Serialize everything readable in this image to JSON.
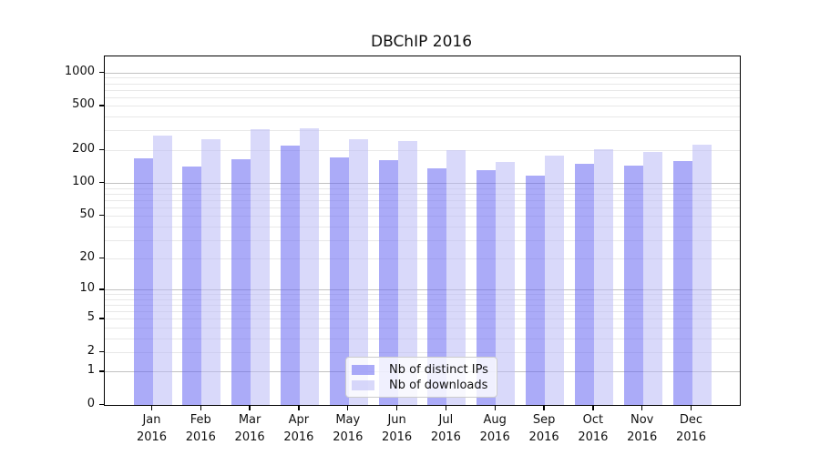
{
  "chart_data": {
    "type": "bar",
    "title": "DBChIP 2016",
    "categories": [
      "Jan",
      "Feb",
      "Mar",
      "Apr",
      "May",
      "Jun",
      "Jul",
      "Aug",
      "Sep",
      "Oct",
      "Nov",
      "Dec"
    ],
    "category_year_line": "2016",
    "series": [
      {
        "name": "Nb of distinct IPs",
        "color": "rgba(102,102,242,0.55)",
        "values": [
          168,
          140,
          165,
          218,
          171,
          161,
          135,
          131,
          117,
          149,
          144,
          157
        ]
      },
      {
        "name": "Nb of downloads",
        "color": "rgba(186,186,246,0.55)",
        "values": [
          267,
          252,
          307,
          312,
          249,
          240,
          199,
          154,
          177,
          201,
          190,
          224
        ]
      }
    ],
    "xlabel": "",
    "ylabel": "",
    "y_ticks": [
      0,
      1,
      2,
      5,
      10,
      20,
      50,
      100,
      200,
      500,
      1000
    ],
    "y_scale": "log1p",
    "ylim": [
      0,
      1400
    ],
    "grid": "both",
    "grid_major_values": [
      1,
      10,
      100,
      1000
    ],
    "legend_position": "lower center",
    "legend_entries": [
      "Nb of distinct IPs",
      "Nb of downloads"
    ]
  }
}
